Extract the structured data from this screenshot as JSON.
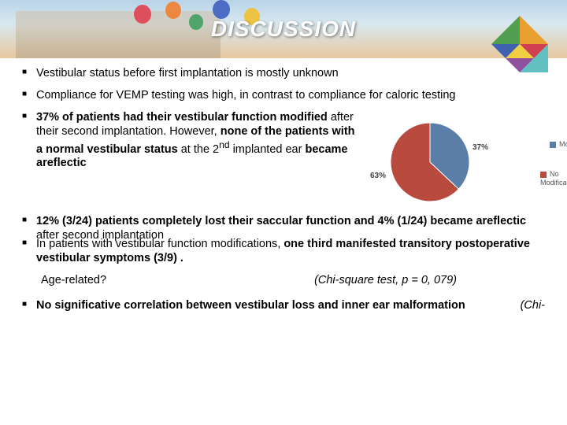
{
  "title": "DISCUSSION",
  "bullets": {
    "b1": "Vestibular status before first implantation is mostly unknown",
    "b2": "Compliance for VEMP testing was high, in contrast to compliance for caloric testing",
    "b3_a": "37% of patients had their vestibular function modified",
    "b3_b": " after their second implantation. However, ",
    "b3_c": "none of the patients with a normal vestibular status",
    "b3_d": " at the 2",
    "b3_sup": "nd",
    "b3_e": " implanted ear ",
    "b3_f": "became areflectic",
    "b4_a": "12% (3/24) patients completely lost their saccular function and 4% (1/24) became areflectic",
    "b4_b": " after second implantation",
    "b5_a": "In patients with vestibular function modifications, ",
    "b5_b": "one third manifested transitory postoperative vestibular symptoms (3/9) .",
    "age_q": "Age-related?",
    "chi1": "(Chi-square test, p = 0, 079)",
    "b6": "No significative correlation between vestibular loss and inner ear malformation",
    "chi2": "(Chi-"
  },
  "chart": {
    "type": "pie",
    "slices": [
      {
        "label": "Modification",
        "value": 37,
        "color": "#5b7ea8"
      },
      {
        "label": "No Modification",
        "value": 63,
        "color": "#b84a3e"
      }
    ],
    "pct_label_1": "37%",
    "pct_label_2": "63%",
    "legend_1": "Modification",
    "legend_2": "No Modification",
    "legend_sq_color": "#5b7ea8",
    "legend_sq_color2": "#b84a3e",
    "bg": "#ffffff"
  },
  "balloons": [
    "#e04050",
    "#f08030",
    "#40a060",
    "#4060c0",
    "#f0c030"
  ],
  "tangram": {
    "c1": "#e8a030",
    "c2": "#50a050",
    "c3": "#4060b0",
    "c4": "#d04050",
    "c5": "#9050a0",
    "c6": "#f0d040",
    "c7": "#60c0c0"
  }
}
